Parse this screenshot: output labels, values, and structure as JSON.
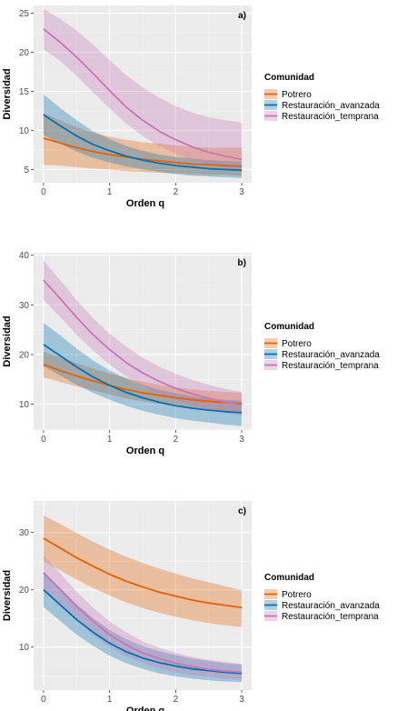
{
  "chart_data": [
    {
      "type": "line",
      "panel_label": "a)",
      "xlabel": "Orden q",
      "ylabel": "Diversidad",
      "xlim": [
        -0.15,
        3.15
      ],
      "ylim": [
        3.3,
        26
      ],
      "xticks": [
        0,
        1,
        2,
        3
      ],
      "yticks": [
        5,
        10,
        15,
        20,
        25
      ],
      "legend_title": "Comunidad",
      "legend_position": "right",
      "grid": true,
      "x": [
        0,
        0.25,
        0.5,
        0.75,
        1,
        1.25,
        1.5,
        1.75,
        2,
        2.25,
        2.5,
        2.75,
        3
      ],
      "series": [
        {
          "name": "Potrero",
          "color": "#e66101",
          "values": [
            9.0,
            8.4,
            7.8,
            7.3,
            6.9,
            6.6,
            6.3,
            6.1,
            5.9,
            5.7,
            5.6,
            5.5,
            5.4
          ],
          "lower": [
            5.6,
            5.5,
            5.3,
            5.1,
            5.0,
            4.8,
            4.7,
            4.6,
            4.5,
            4.4,
            4.3,
            4.3,
            4.2
          ],
          "upper": [
            12.2,
            11.3,
            10.4,
            9.7,
            9.2,
            8.8,
            8.5,
            8.3,
            8.1,
            7.9,
            7.8,
            7.8,
            7.8
          ]
        },
        {
          "name": "Restauración_avanzada",
          "color": "#0571b0",
          "values": [
            12.0,
            10.6,
            9.3,
            8.2,
            7.4,
            6.7,
            6.2,
            5.8,
            5.5,
            5.3,
            5.1,
            5.0,
            4.9
          ],
          "lower": [
            9.4,
            8.3,
            7.3,
            6.5,
            5.9,
            5.4,
            5.0,
            4.7,
            4.4,
            4.2,
            4.1,
            4.0,
            3.9
          ],
          "upper": [
            14.6,
            12.9,
            11.3,
            9.9,
            8.9,
            8.0,
            7.4,
            6.9,
            6.6,
            6.4,
            6.2,
            6.1,
            6.0
          ]
        },
        {
          "name": "Restauración_temprana",
          "color": "#c875b4",
          "values": [
            23.0,
            21.3,
            19.4,
            17.3,
            15.1,
            13.0,
            11.3,
            9.9,
            8.8,
            7.9,
            7.2,
            6.7,
            6.3
          ],
          "lower": [
            20.4,
            18.9,
            17.0,
            14.9,
            12.8,
            10.9,
            9.3,
            8.0,
            7.0,
            6.2,
            5.6,
            5.1,
            4.8
          ],
          "upper": [
            25.6,
            24.3,
            22.8,
            21.0,
            19.0,
            17.1,
            15.5,
            14.2,
            13.1,
            12.3,
            11.7,
            11.3,
            11.0
          ]
        }
      ]
    },
    {
      "type": "line",
      "panel_label": "b)",
      "xlabel": "Orden q",
      "ylabel": "Diversidad",
      "xlim": [
        -0.15,
        3.15
      ],
      "ylim": [
        4.8,
        40.5
      ],
      "xticks": [
        0,
        1,
        2,
        3
      ],
      "yticks": [
        10,
        20,
        30,
        40
      ],
      "legend_title": "Comunidad",
      "legend_position": "right",
      "grid": true,
      "x": [
        0,
        0.25,
        0.5,
        0.75,
        1,
        1.25,
        1.5,
        1.75,
        2,
        2.25,
        2.5,
        2.75,
        3
      ],
      "series": [
        {
          "name": "Potrero",
          "color": "#e66101",
          "values": [
            18.0,
            16.8,
            15.7,
            14.7,
            13.8,
            13.0,
            12.3,
            11.8,
            11.3,
            10.9,
            10.6,
            10.3,
            10.1
          ],
          "lower": [
            15.4,
            14.5,
            13.6,
            12.8,
            12.0,
            11.2,
            10.6,
            10.1,
            9.6,
            9.2,
            8.9,
            8.6,
            8.4
          ],
          "upper": [
            20.6,
            19.5,
            18.3,
            17.2,
            16.2,
            15.3,
            14.5,
            13.9,
            13.4,
            13.0,
            12.7,
            12.5,
            12.3
          ]
        },
        {
          "name": "Restauración_avanzada",
          "color": "#0571b0",
          "values": [
            22.0,
            19.8,
            17.5,
            15.5,
            13.8,
            12.4,
            11.3,
            10.4,
            9.7,
            9.2,
            8.8,
            8.5,
            8.3
          ],
          "lower": [
            17.6,
            15.8,
            13.9,
            12.3,
            10.9,
            9.7,
            8.7,
            7.9,
            7.2,
            6.7,
            6.3,
            5.9,
            5.6
          ],
          "upper": [
            26.4,
            23.9,
            21.2,
            18.8,
            16.8,
            15.2,
            13.9,
            12.9,
            12.2,
            11.6,
            11.2,
            10.9,
            10.7
          ]
        },
        {
          "name": "Restauración_temprana",
          "color": "#c875b4",
          "values": [
            35.0,
            31.3,
            27.5,
            24.0,
            21.0,
            18.4,
            16.3,
            14.6,
            13.2,
            12.1,
            11.2,
            10.4,
            9.8
          ],
          "lower": [
            31.0,
            27.6,
            24.0,
            20.8,
            18.0,
            15.6,
            13.7,
            12.1,
            10.8,
            9.8,
            8.9,
            8.2,
            7.7
          ],
          "upper": [
            39.0,
            35.0,
            31.0,
            27.3,
            24.2,
            21.6,
            19.4,
            17.6,
            16.1,
            14.9,
            13.9,
            13.1,
            12.5
          ]
        }
      ]
    },
    {
      "type": "line",
      "panel_label": "c)",
      "xlabel": "Orden q",
      "ylabel": "Diversidad",
      "xlim": [
        -0.15,
        3.15
      ],
      "ylim": [
        2.5,
        35.5
      ],
      "xticks": [
        0,
        1,
        2,
        3
      ],
      "yticks": [
        10,
        20,
        30
      ],
      "legend_title": "Comunidad",
      "legend_position": "right",
      "grid": true,
      "x": [
        0,
        0.25,
        0.5,
        0.75,
        1,
        1.25,
        1.5,
        1.75,
        2,
        2.25,
        2.5,
        2.75,
        3
      ],
      "series": [
        {
          "name": "Potrero",
          "color": "#e66101",
          "values": [
            29.0,
            27.3,
            25.6,
            24.1,
            22.7,
            21.5,
            20.5,
            19.6,
            18.9,
            18.2,
            17.7,
            17.3,
            16.9
          ],
          "lower": [
            25.0,
            23.4,
            21.8,
            20.3,
            19.0,
            17.8,
            16.8,
            16.0,
            15.3,
            14.7,
            14.2,
            13.8,
            13.5
          ],
          "upper": [
            33.0,
            31.5,
            29.9,
            28.4,
            27.0,
            25.8,
            24.7,
            23.7,
            22.8,
            22.0,
            21.3,
            20.6,
            20.0
          ]
        },
        {
          "name": "Restauración_avanzada",
          "color": "#0571b0",
          "values": [
            20.0,
            17.4,
            14.8,
            12.6,
            10.7,
            9.2,
            8.1,
            7.3,
            6.7,
            6.2,
            5.9,
            5.6,
            5.4
          ],
          "lower": [
            17.0,
            14.6,
            12.2,
            10.2,
            8.5,
            7.2,
            6.2,
            5.4,
            4.9,
            4.5,
            4.2,
            4.0,
            3.9
          ],
          "upper": [
            23.0,
            20.3,
            17.5,
            15.1,
            13.0,
            11.4,
            10.2,
            9.3,
            8.6,
            8.0,
            7.6,
            7.2,
            6.9
          ]
        },
        {
          "name": "Restauración_temprana",
          "color": "#c875b4",
          "values": [
            23.0,
            20.1,
            17.1,
            14.5,
            12.2,
            10.4,
            9.0,
            8.0,
            7.2,
            6.6,
            6.1,
            5.8,
            5.6
          ],
          "lower": [
            20.0,
            17.4,
            14.6,
            12.1,
            10.0,
            8.4,
            7.2,
            6.3,
            5.6,
            5.1,
            4.8,
            4.5,
            4.3
          ],
          "upper": [
            26.0,
            22.9,
            19.7,
            16.9,
            14.5,
            12.6,
            11.0,
            9.9,
            9.0,
            8.3,
            7.8,
            7.4,
            7.1
          ]
        }
      ]
    }
  ]
}
